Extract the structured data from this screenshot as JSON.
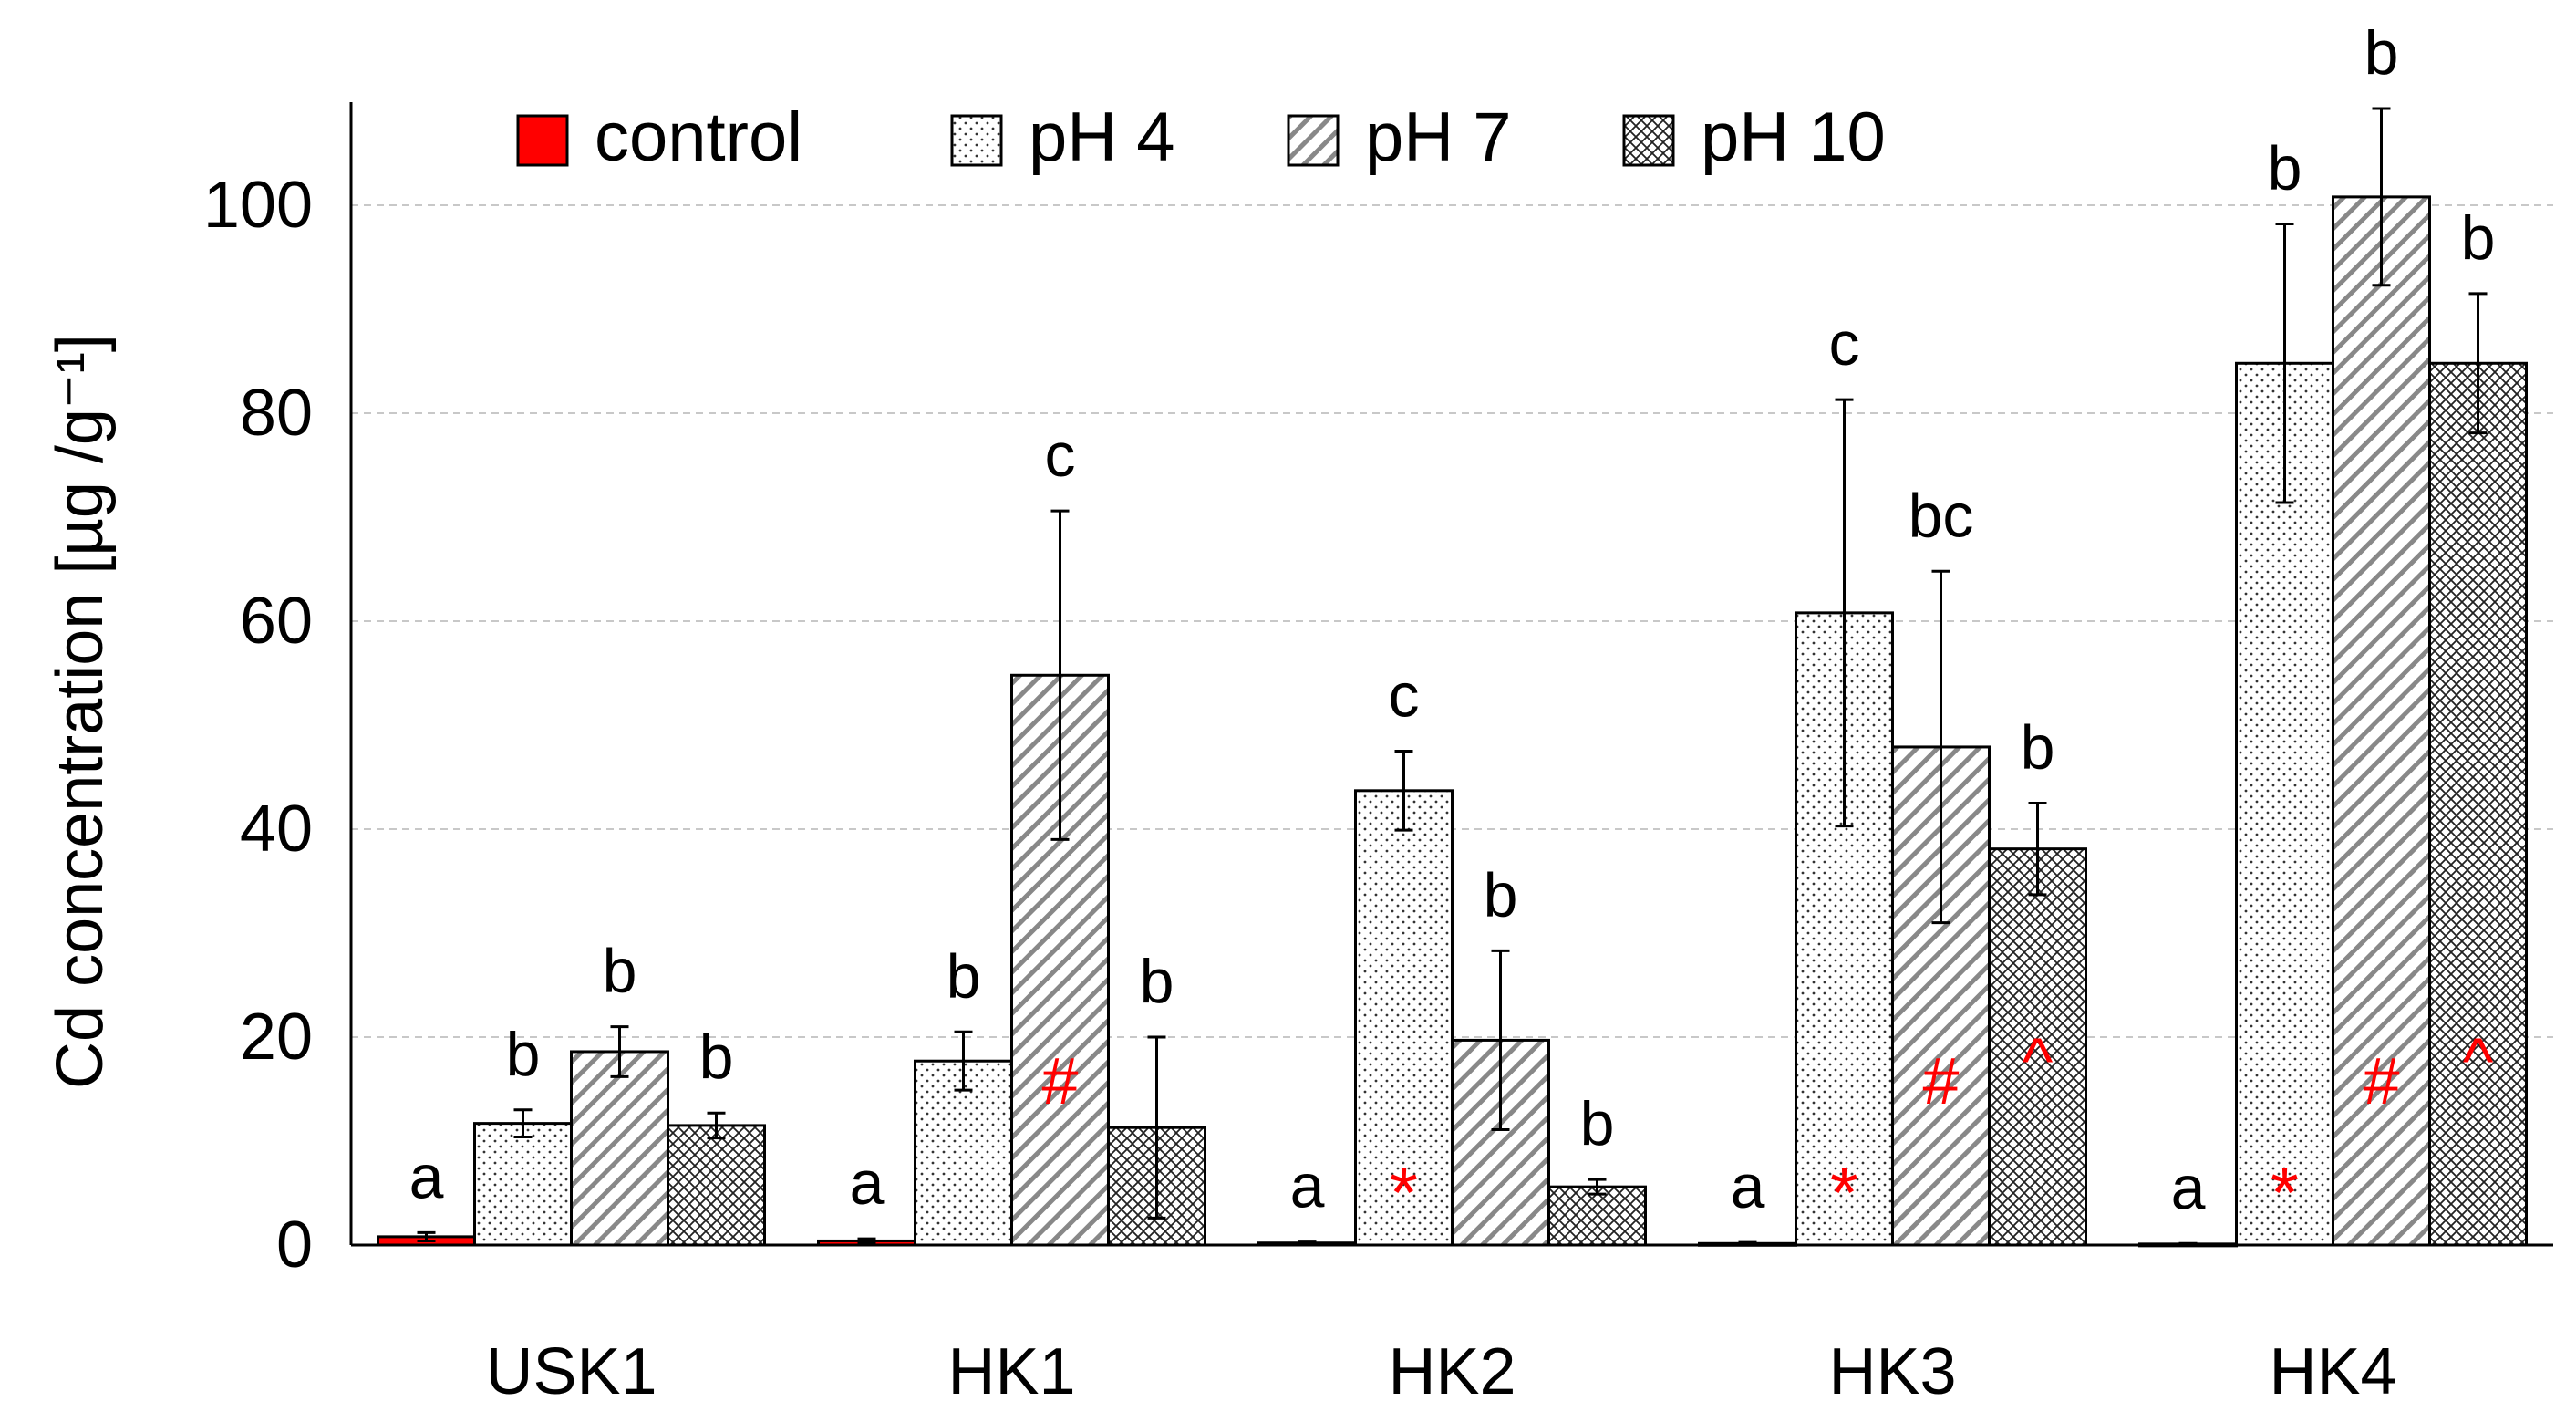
{
  "chart_data": {
    "type": "bar",
    "title": "",
    "xlabel": "",
    "ylabel": "Cd concentration [µg /g⁻¹]",
    "ylim": [
      0,
      110
    ],
    "yticks": [
      0,
      20,
      40,
      60,
      80,
      100
    ],
    "grid": true,
    "legend_position": "top",
    "categories": [
      "USK1",
      "HK1",
      "HK2",
      "HK3",
      "HK4"
    ],
    "series": [
      {
        "name": "control",
        "pattern": "solid-red",
        "color": "#ff0000",
        "values": [
          0.8,
          0.4,
          0.2,
          0.15,
          0.1
        ],
        "errors": [
          0.4,
          0.2,
          0.1,
          0.1,
          0.05
        ],
        "letters": [
          "a",
          "a",
          "a",
          "a",
          "a"
        ],
        "markers": [
          "",
          "",
          "",
          "",
          ""
        ]
      },
      {
        "name": "pH 4",
        "pattern": "dots",
        "color": "#ffffff",
        "values": [
          11.7,
          17.7,
          43.7,
          60.8,
          84.8
        ],
        "errors": [
          1.3,
          2.8,
          3.8,
          20.5,
          13.4
        ],
        "letters": [
          "b",
          "b",
          "c",
          "c",
          "b"
        ],
        "markers": [
          "",
          "",
          "*",
          "*",
          "*"
        ]
      },
      {
        "name": "pH 7",
        "pattern": "diagonal",
        "color": "#ffffff",
        "values": [
          18.6,
          54.8,
          19.7,
          47.9,
          100.8
        ],
        "errors": [
          2.4,
          15.8,
          8.6,
          16.9,
          8.5
        ],
        "letters": [
          "b",
          "c",
          "b",
          "bc",
          "b"
        ],
        "markers": [
          "",
          "#",
          "",
          "#",
          "#"
        ]
      },
      {
        "name": "pH 10",
        "pattern": "crosshatch",
        "color": "#ffffff",
        "values": [
          11.5,
          11.3,
          5.6,
          38.1,
          84.8
        ],
        "errors": [
          1.2,
          8.7,
          0.7,
          4.4,
          6.7
        ],
        "letters": [
          "b",
          "b",
          "b",
          "b",
          "b"
        ],
        "markers": [
          "",
          "",
          "",
          "^",
          "^"
        ]
      }
    ],
    "marker_color": "#ff0000"
  }
}
